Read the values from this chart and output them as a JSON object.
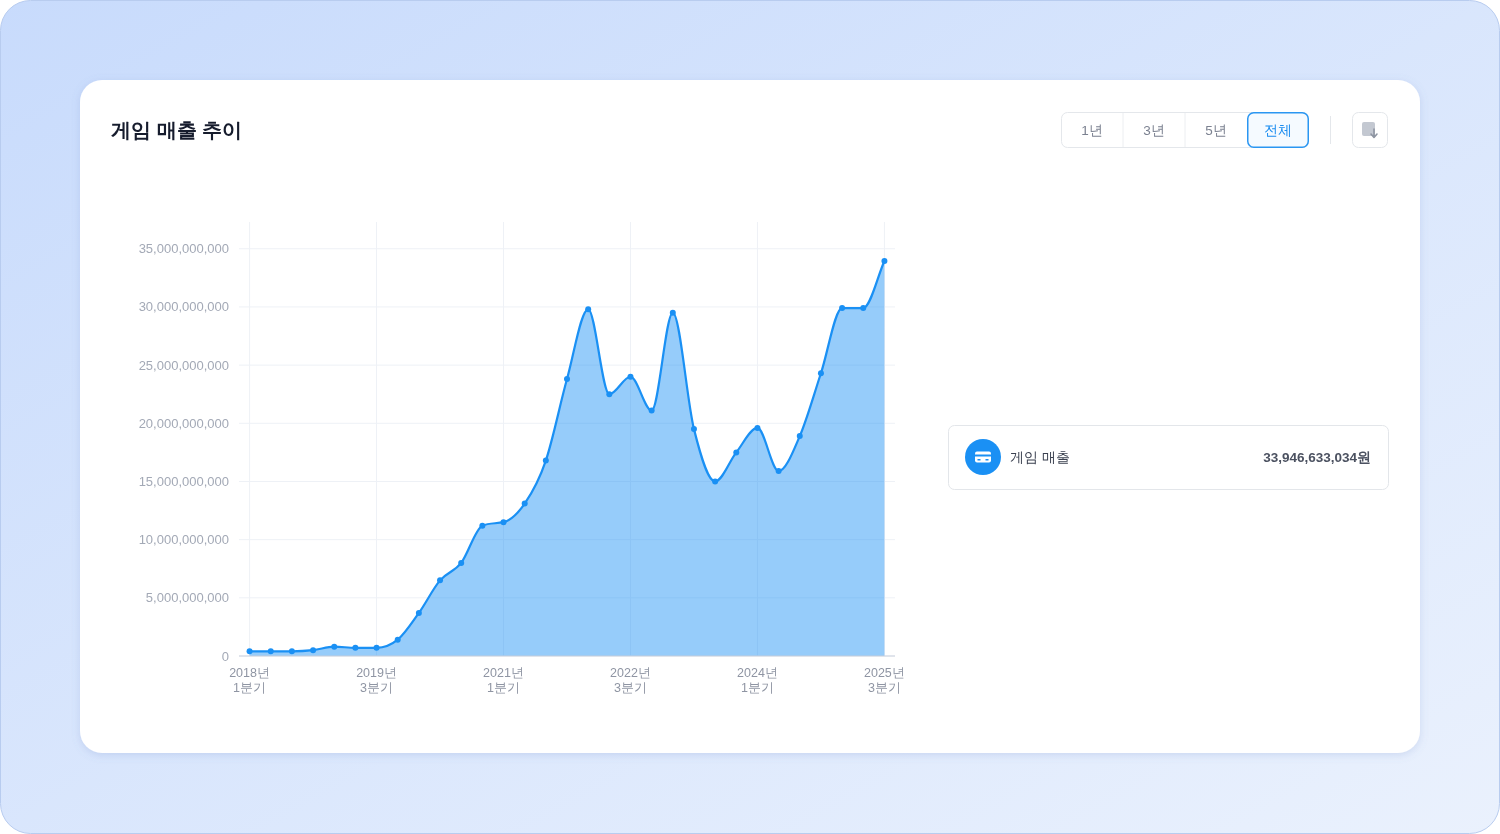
{
  "chart_data": [
    {
      "type": "area",
      "title": "게임 매출 추이",
      "categories": [
        "2018년\n1분기",
        null,
        null,
        null,
        null,
        null,
        "2019년\n3분기",
        null,
        null,
        null,
        null,
        null,
        "2021년\n1분기",
        null,
        null,
        null,
        null,
        null,
        "2022년\n3분기",
        null,
        null,
        null,
        null,
        null,
        "2024년\n1분기",
        null,
        null,
        null,
        null,
        null,
        "2025년\n3분기"
      ],
      "series": [
        {
          "name": "게임 매출",
          "color": "#1a90f4",
          "values": [
            400000000,
            400000000,
            400000000,
            500000000,
            800000000,
            700000000,
            700000000,
            1400000000,
            3700000000,
            6500000000,
            8000000000,
            11200000000,
            11500000000,
            13100000000,
            16800000000,
            23800000000,
            29800000000,
            22500000000,
            24000000000,
            21100000000,
            29500000000,
            19500000000,
            15000000000,
            17500000000,
            19600000000,
            15900000000,
            18900000000,
            24300000000,
            29900000000,
            29900000000,
            33946633034
          ]
        }
      ],
      "ylim": [
        0,
        37300000000
      ],
      "yticks": [
        0,
        {
          "value": 5000000000,
          "label": "5,000,000,000"
        },
        {
          "value": 10000000000,
          "label": "10,000,000,000"
        },
        {
          "value": 15000000000,
          "label": "15,000,000,000"
        },
        {
          "value": 20000000000,
          "label": "20,000,000,000"
        },
        {
          "value": 25000000000,
          "label": "25,000,000,000"
        },
        {
          "value": 30000000000,
          "label": "30,000,000,000"
        },
        {
          "value": 35000000000,
          "label": "35,000,000,000"
        }
      ],
      "grid": true,
      "legend": "right",
      "marker": "circle",
      "line_style": "solid",
      "annotations": [
        "33,946,633,034원"
      ]
    },
    {
      "type": "other",
      "annotations": [
        "1년",
        "3년",
        "5년",
        "전체"
      ]
    }
  ]
}
